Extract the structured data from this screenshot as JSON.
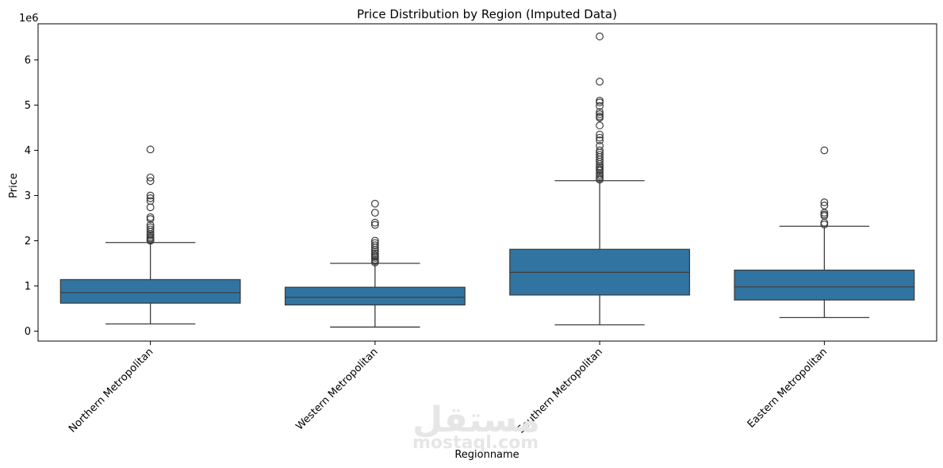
{
  "chart_data": {
    "type": "box",
    "title": "Price Distribution by Region (Imputed Data)",
    "xlabel": "Regionname",
    "ylabel": "Price",
    "y_offset_label": "1e6",
    "ylim": [
      -0.22,
      6.8
    ],
    "yticks": [
      0,
      1,
      2,
      3,
      4,
      5,
      6
    ],
    "box_color": "#3274a1",
    "edge_color": "#3d3d3d",
    "categories": [
      "Northern Metropolitan",
      "Western Metropolitan",
      "Southern Metropolitan",
      "Eastern Metropolitan"
    ],
    "boxes": [
      {
        "category": "Northern Metropolitan",
        "whisker_low": 0.16,
        "q1": 0.62,
        "median": 0.85,
        "q3": 1.14,
        "whisker_high": 1.96,
        "outliers": [
          4.02,
          3.4,
          3.32,
          3.0,
          2.94,
          2.88,
          2.74,
          2.52,
          2.48,
          2.35,
          2.3,
          2.25,
          2.2,
          2.15,
          2.12,
          2.08,
          2.05,
          2.02,
          2.0
        ]
      },
      {
        "category": "Western Metropolitan",
        "whisker_low": 0.09,
        "q1": 0.58,
        "median": 0.75,
        "q3": 0.97,
        "whisker_high": 1.5,
        "outliers": [
          2.82,
          2.62,
          2.4,
          2.35,
          2.0,
          1.95,
          1.9,
          1.85,
          1.8,
          1.76,
          1.72,
          1.68,
          1.65,
          1.62,
          1.58,
          1.55,
          1.52
        ]
      },
      {
        "category": "Southern Metropolitan",
        "whisker_low": 0.14,
        "q1": 0.8,
        "median": 1.3,
        "q3": 1.81,
        "whisker_high": 3.33,
        "outliers": [
          6.52,
          5.52,
          5.1,
          5.06,
          4.98,
          4.85,
          4.8,
          4.75,
          4.72,
          4.55,
          4.35,
          4.28,
          4.22,
          4.1,
          4.0,
          3.95,
          3.9,
          3.85,
          3.8,
          3.75,
          3.7,
          3.65,
          3.62,
          3.58,
          3.55,
          3.5,
          3.46,
          3.42,
          3.38,
          3.35
        ]
      },
      {
        "category": "Eastern Metropolitan",
        "whisker_low": 0.3,
        "q1": 0.69,
        "median": 0.98,
        "q3": 1.35,
        "whisker_high": 2.32,
        "outliers": [
          4.0,
          2.85,
          2.78,
          2.62,
          2.58,
          2.55,
          2.4,
          2.36
        ]
      }
    ]
  },
  "watermark": {
    "arabic": "مستقل",
    "latin": "mostaql.com"
  }
}
